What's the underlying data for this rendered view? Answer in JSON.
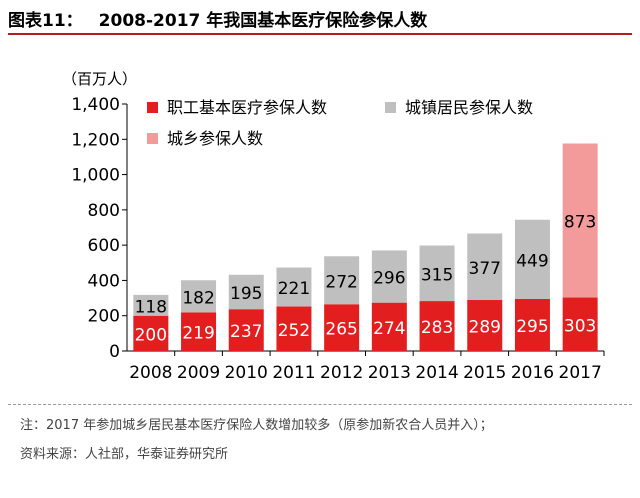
{
  "figure": {
    "label": "图表11：",
    "title": "2008-2017 年我国基本医疗保险参保人数"
  },
  "notes": {
    "note_prefix": "注：",
    "note_text": "2017 年参加城乡居民基本医疗保险人数增加较多（原参加新农合人员并入）；",
    "source_prefix": "资料来源：",
    "source_text": "人社部，华泰证券研究所"
  },
  "colors": {
    "employee": "#e31e1e",
    "urban": "#bfbfbf",
    "urban_rural": "#f39a9a",
    "label_on_dark": "#ffffff",
    "label_on_light": "#000000"
  },
  "chart_data": {
    "type": "bar",
    "stacked": true,
    "categories": [
      "2008",
      "2009",
      "2010",
      "2011",
      "2012",
      "2013",
      "2014",
      "2015",
      "2016",
      "2017"
    ],
    "series": [
      {
        "name": "职工基本医疗参保人数",
        "color": "#e31e1e",
        "values": [
          200,
          219,
          237,
          252,
          265,
          274,
          283,
          289,
          295,
          303
        ]
      },
      {
        "name": "城镇居民参保人数",
        "color": "#bfbfbf",
        "values": [
          118,
          182,
          195,
          221,
          272,
          296,
          315,
          377,
          449,
          null
        ]
      },
      {
        "name": "城乡参保人数",
        "color": "#f39a9a",
        "values": [
          null,
          null,
          null,
          null,
          null,
          null,
          null,
          null,
          null,
          873
        ]
      }
    ],
    "unit": "（百万人）",
    "ylim": [
      0,
      1400
    ],
    "yticks": [
      0,
      200,
      400,
      600,
      800,
      1000,
      1200,
      1400
    ],
    "ytick_labels": [
      "0",
      "200",
      "400",
      "600",
      "800",
      "1,000",
      "1,200",
      "1,400"
    ],
    "grid": false,
    "legend_position": "top-left"
  }
}
